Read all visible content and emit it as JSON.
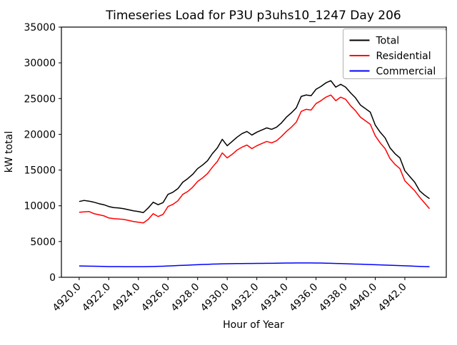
{
  "chart_data": {
    "type": "line",
    "title": "Timeseries Load for P3U p3uhs10_1247  Day 206",
    "xlabel": "Hour of Year",
    "ylabel": "kW total",
    "xlim": [
      4918.8,
      4944.8
    ],
    "ylim": [
      0,
      35000
    ],
    "xticks": [
      4920,
      4922,
      4924,
      4926,
      4928,
      4930,
      4932,
      4934,
      4936,
      4938,
      4940,
      4942
    ],
    "xtick_label_suffix": ".0",
    "yticks": [
      0,
      5000,
      10000,
      15000,
      20000,
      25000,
      30000,
      35000
    ],
    "grid": false,
    "x_start": 4920.0,
    "x_step": 0.33333,
    "legend": {
      "position": "upper right",
      "entries": [
        {
          "label": "Total",
          "color": "#000000"
        },
        {
          "label": "Residential",
          "color": "#ff0000"
        },
        {
          "label": "Commercial",
          "color": "#0000ff"
        }
      ]
    },
    "series": [
      {
        "name": "Total",
        "color": "#000000",
        "values": [
          10600,
          10750,
          10650,
          10500,
          10300,
          10150,
          9900,
          9750,
          9700,
          9600,
          9450,
          9300,
          9200,
          9050,
          9700,
          10500,
          10150,
          10450,
          11600,
          11900,
          12400,
          13300,
          13800,
          14400,
          15200,
          15700,
          16300,
          17300,
          18100,
          19300,
          18400,
          19000,
          19600,
          20100,
          20400,
          19900,
          20300,
          20600,
          20900,
          20700,
          21000,
          21600,
          22400,
          23000,
          23700,
          25300,
          25500,
          25400,
          26300,
          26700,
          27200,
          27500,
          26600,
          27000,
          26600,
          25800,
          25100,
          24100,
          23600,
          23100,
          21300,
          20300,
          19500,
          18100,
          17300,
          16700,
          14900,
          14100,
          13300,
          12100,
          11500,
          11000
        ]
      },
      {
        "name": "Residential",
        "color": "#ff0000",
        "values": [
          9100,
          9150,
          9200,
          8900,
          8750,
          8600,
          8300,
          8200,
          8150,
          8100,
          7950,
          7800,
          7700,
          7600,
          8100,
          8900,
          8500,
          8800,
          9900,
          10200,
          10700,
          11600,
          12000,
          12600,
          13400,
          13900,
          14500,
          15400,
          16200,
          17400,
          16700,
          17200,
          17800,
          18200,
          18500,
          18000,
          18400,
          18700,
          19000,
          18800,
          19100,
          19700,
          20400,
          21000,
          21700,
          23200,
          23500,
          23400,
          24300,
          24700,
          25200,
          25500,
          24700,
          25200,
          24900,
          24000,
          23300,
          22400,
          21900,
          21400,
          19800,
          18800,
          18000,
          16600,
          15800,
          15200,
          13500,
          12800,
          12100,
          11200,
          10400,
          9600
        ]
      },
      {
        "name": "Commercial",
        "color": "#0000ff",
        "values": [
          1580,
          1570,
          1560,
          1540,
          1530,
          1520,
          1500,
          1495,
          1490,
          1485,
          1480,
          1480,
          1480,
          1485,
          1490,
          1510,
          1530,
          1550,
          1580,
          1610,
          1640,
          1670,
          1700,
          1730,
          1760,
          1790,
          1810,
          1840,
          1860,
          1880,
          1895,
          1905,
          1915,
          1920,
          1930,
          1935,
          1940,
          1950,
          1955,
          1960,
          1970,
          1980,
          1990,
          2000,
          2005,
          2010,
          2010,
          2005,
          2000,
          1990,
          1975,
          1955,
          1935,
          1915,
          1890,
          1870,
          1850,
          1830,
          1810,
          1785,
          1760,
          1735,
          1710,
          1685,
          1660,
          1635,
          1610,
          1580,
          1550,
          1520,
          1500,
          1480
        ]
      }
    ]
  }
}
